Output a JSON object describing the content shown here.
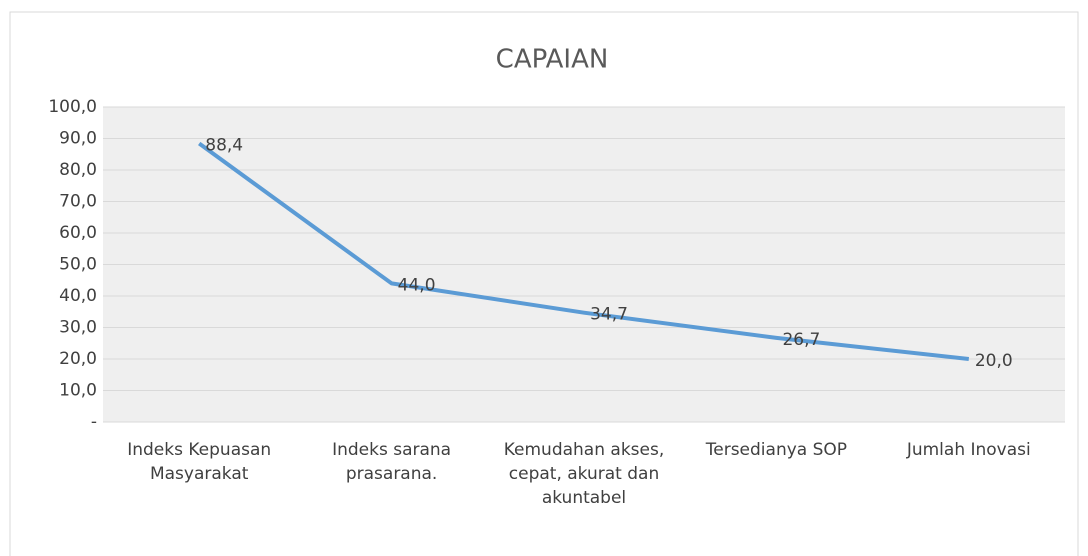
{
  "chart_data": {
    "type": "line",
    "title": "CAPAIAN",
    "categories": [
      "Indeks Kepuasan Masyarakat",
      "Indeks sarana prasarana.",
      "Kemudahan akses, cepat, akurat dan akuntabel",
      "Tersedianya SOP",
      "Jumlah Inovasi"
    ],
    "series": [
      {
        "name": "CAPAIAN",
        "color": "#5b9bd5",
        "values": [
          88.4,
          44.0,
          34.7,
          26.7,
          20.0
        ],
        "value_labels": [
          "88,4",
          "44,0",
          "34,7",
          "26,7",
          "20,0"
        ]
      }
    ],
    "ylim": [
      0,
      100
    ],
    "yticks": [
      {
        "value": 0,
        "label": "-"
      },
      {
        "value": 10,
        "label": "10,0"
      },
      {
        "value": 20,
        "label": "20,0"
      },
      {
        "value": 30,
        "label": "30,0"
      },
      {
        "value": 40,
        "label": "40,0"
      },
      {
        "value": 50,
        "label": "50,0"
      },
      {
        "value": 60,
        "label": "60,0"
      },
      {
        "value": 70,
        "label": "70,0"
      },
      {
        "value": 80,
        "label": "80,0"
      },
      {
        "value": 90,
        "label": "90,0"
      },
      {
        "value": 100,
        "label": "100,0"
      }
    ],
    "grid": true
  }
}
